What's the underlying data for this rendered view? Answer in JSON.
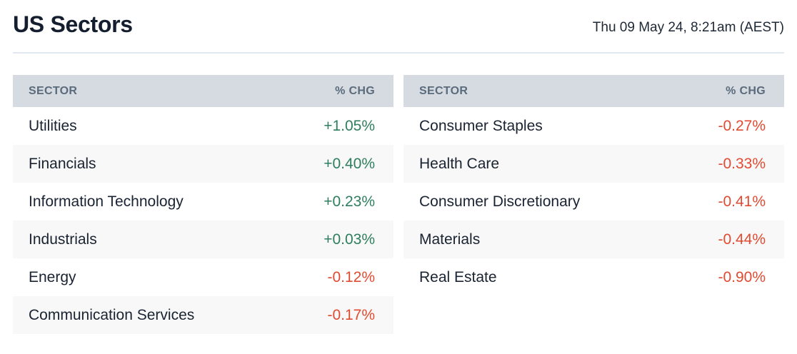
{
  "header": {
    "title": "US Sectors",
    "timestamp": "Thu 09 May 24, 8:21am (AEST)"
  },
  "colors": {
    "positive": "#2e7e5f",
    "negative": "#e04b31",
    "header-bg": "#d5dbe1",
    "header-text": "#5b6b7c",
    "row-alt-bg": "#f7f8f7",
    "divider": "#e0e9f3"
  },
  "tables": [
    {
      "columns": [
        "SECTOR",
        "% CHG"
      ],
      "rows": [
        {
          "sector": "Utilities",
          "chg": "+1.05%",
          "direction": "up"
        },
        {
          "sector": "Financials",
          "chg": "+0.40%",
          "direction": "up"
        },
        {
          "sector": "Information Technology",
          "chg": "+0.23%",
          "direction": "up"
        },
        {
          "sector": "Industrials",
          "chg": "+0.03%",
          "direction": "up"
        },
        {
          "sector": "Energy",
          "chg": "-0.12%",
          "direction": "down"
        },
        {
          "sector": "Communication Services",
          "chg": "-0.17%",
          "direction": "down"
        }
      ]
    },
    {
      "columns": [
        "SECTOR",
        "% CHG"
      ],
      "rows": [
        {
          "sector": "Consumer Staples",
          "chg": "-0.27%",
          "direction": "down"
        },
        {
          "sector": "Health Care",
          "chg": "-0.33%",
          "direction": "down"
        },
        {
          "sector": "Consumer Discretionary",
          "chg": "-0.41%",
          "direction": "down"
        },
        {
          "sector": "Materials",
          "chg": "-0.44%",
          "direction": "down"
        },
        {
          "sector": "Real Estate",
          "chg": "-0.90%",
          "direction": "down"
        }
      ]
    }
  ],
  "chart_data": {
    "type": "table",
    "title": "US Sectors",
    "timestamp": "Thu 09 May 24, 8:21am (AEST)",
    "columns": [
      "SECTOR",
      "% CHG"
    ],
    "series": [
      {
        "name": "left-table",
        "categories": [
          "Utilities",
          "Financials",
          "Information Technology",
          "Industrials",
          "Energy",
          "Communication Services"
        ],
        "values": [
          1.05,
          0.4,
          0.23,
          0.03,
          -0.12,
          -0.17
        ]
      },
      {
        "name": "right-table",
        "categories": [
          "Consumer Staples",
          "Health Care",
          "Consumer Discretionary",
          "Materials",
          "Real Estate"
        ],
        "values": [
          -0.27,
          -0.33,
          -0.41,
          -0.44,
          -0.9
        ]
      }
    ],
    "value_format": "signed percent, 2 decimals",
    "positive_color": "#2e7e5f",
    "negative_color": "#e04b31"
  }
}
